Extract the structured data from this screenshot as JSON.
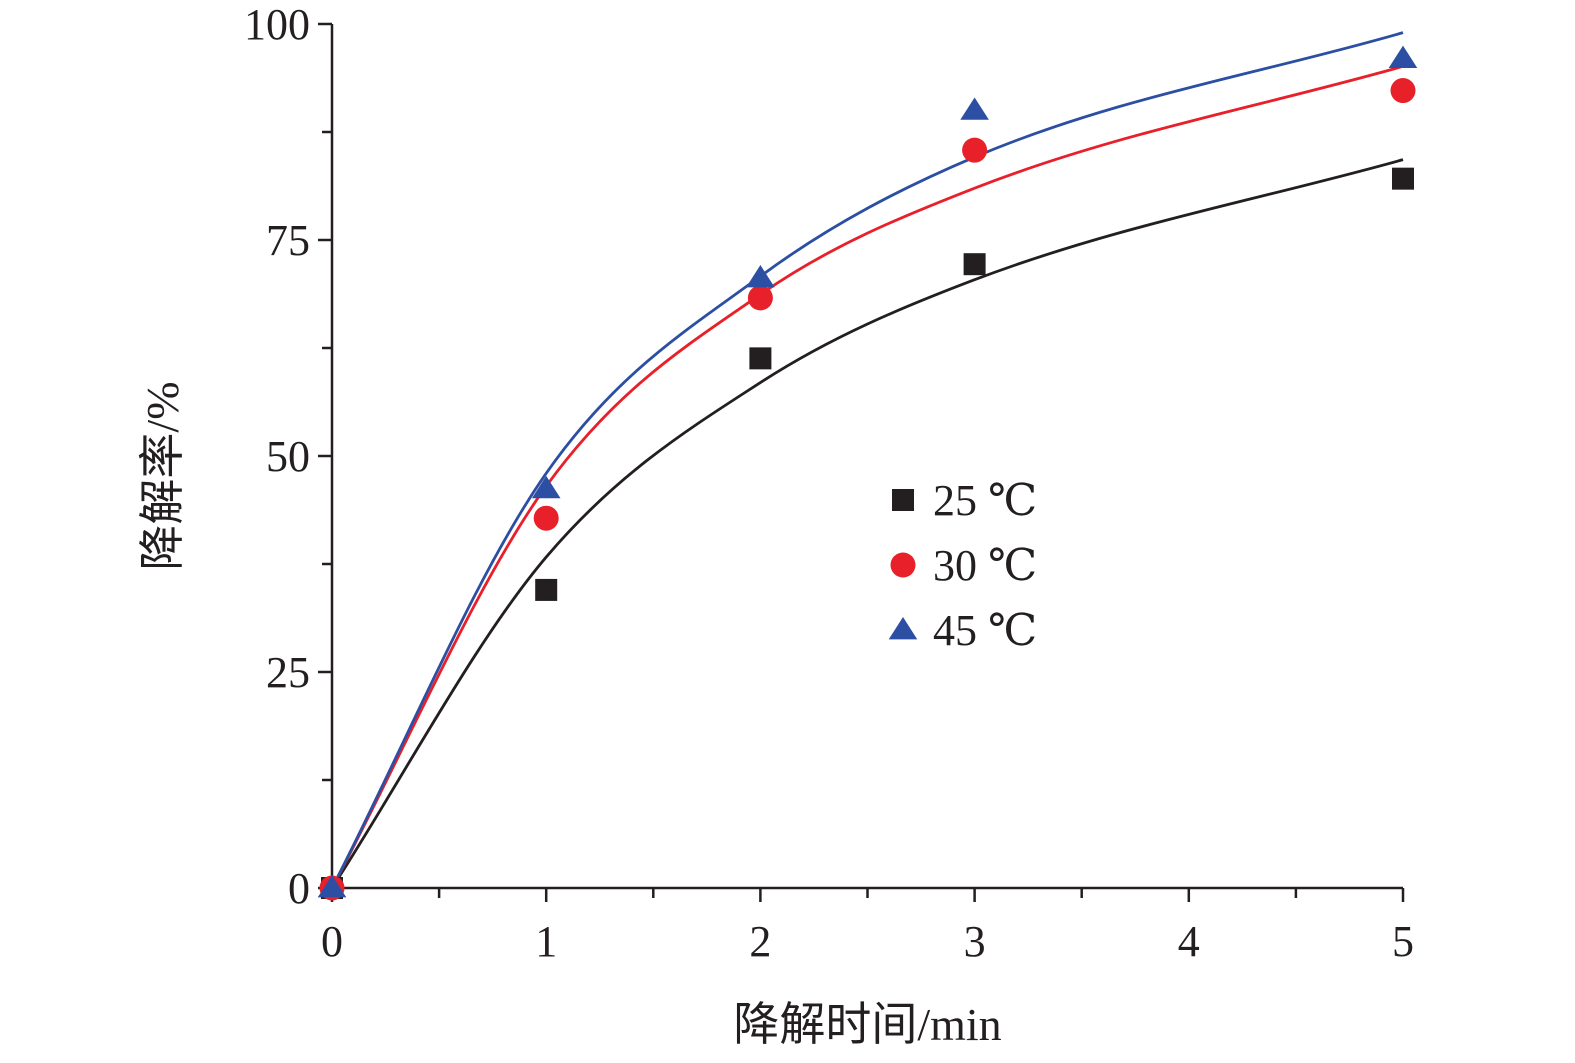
{
  "chart_data": {
    "type": "scatter",
    "title": "",
    "xlabel": "降解时间/min",
    "ylabel": "降解率/%",
    "xlim": [
      0,
      5
    ],
    "ylim": [
      0,
      100
    ],
    "xticks": [
      "0",
      "1",
      "2",
      "3",
      "4",
      "5"
    ],
    "yticks": [
      "0",
      "25",
      "50",
      "75",
      "100"
    ],
    "x_minor_step": 0.5,
    "y_minor_step": 12.5,
    "grid": false,
    "legend_position": "center-right",
    "series": [
      {
        "name": "25 ℃",
        "marker": "square",
        "color": "#231f20",
        "x": [
          0,
          1,
          2,
          3,
          5
        ],
        "values": [
          0,
          34.5,
          61.3,
          72.2,
          82.1
        ],
        "fit_curve": [
          [
            0,
            0
          ],
          [
            1,
            38.3
          ],
          [
            2,
            58.5
          ],
          [
            3,
            70.4
          ],
          [
            5,
            84.3
          ]
        ]
      },
      {
        "name": "30 ℃",
        "marker": "circle",
        "color": "#e8202a",
        "x": [
          0,
          1,
          2,
          3,
          5
        ],
        "values": [
          0,
          42.8,
          68.3,
          85.4,
          92.3
        ],
        "fit_curve": [
          [
            0,
            0
          ],
          [
            1,
            46.5
          ],
          [
            2,
            68.7
          ],
          [
            3,
            81.0
          ],
          [
            5,
            95.1
          ]
        ]
      },
      {
        "name": "45 ℃",
        "marker": "triangle",
        "color": "#2c4fa3",
        "x": [
          0,
          1,
          2,
          3,
          5
        ],
        "values": [
          0,
          46.2,
          70.6,
          90.0,
          96.0
        ],
        "fit_curve": [
          [
            0,
            0
          ],
          [
            1,
            48.0
          ],
          [
            2,
            70.8
          ],
          [
            3,
            84.6
          ],
          [
            5,
            99.0
          ]
        ]
      }
    ]
  }
}
